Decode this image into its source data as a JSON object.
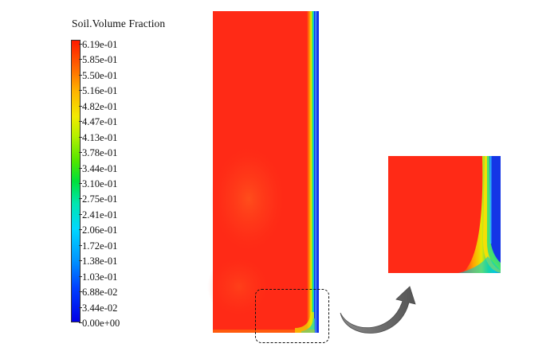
{
  "legend": {
    "title": "Soil.Volume Fraction",
    "ticks": [
      "6.19e-01",
      "5.85e-01",
      "5.50e-01",
      "5.16e-01",
      "4.82e-01",
      "4.47e-01",
      "4.13e-01",
      "3.78e-01",
      "3.44e-01",
      "3.10e-01",
      "2.75e-01",
      "2.41e-01",
      "2.06e-01",
      "1.72e-01",
      "1.38e-01",
      "1.03e-01",
      "6.88e-02",
      "3.44e-02",
      "0.00e+00"
    ]
  },
  "colors": {
    "field_red": "#ff2a16",
    "blue": "#1435e6",
    "arrow_gray": "#6f6f6f"
  }
}
